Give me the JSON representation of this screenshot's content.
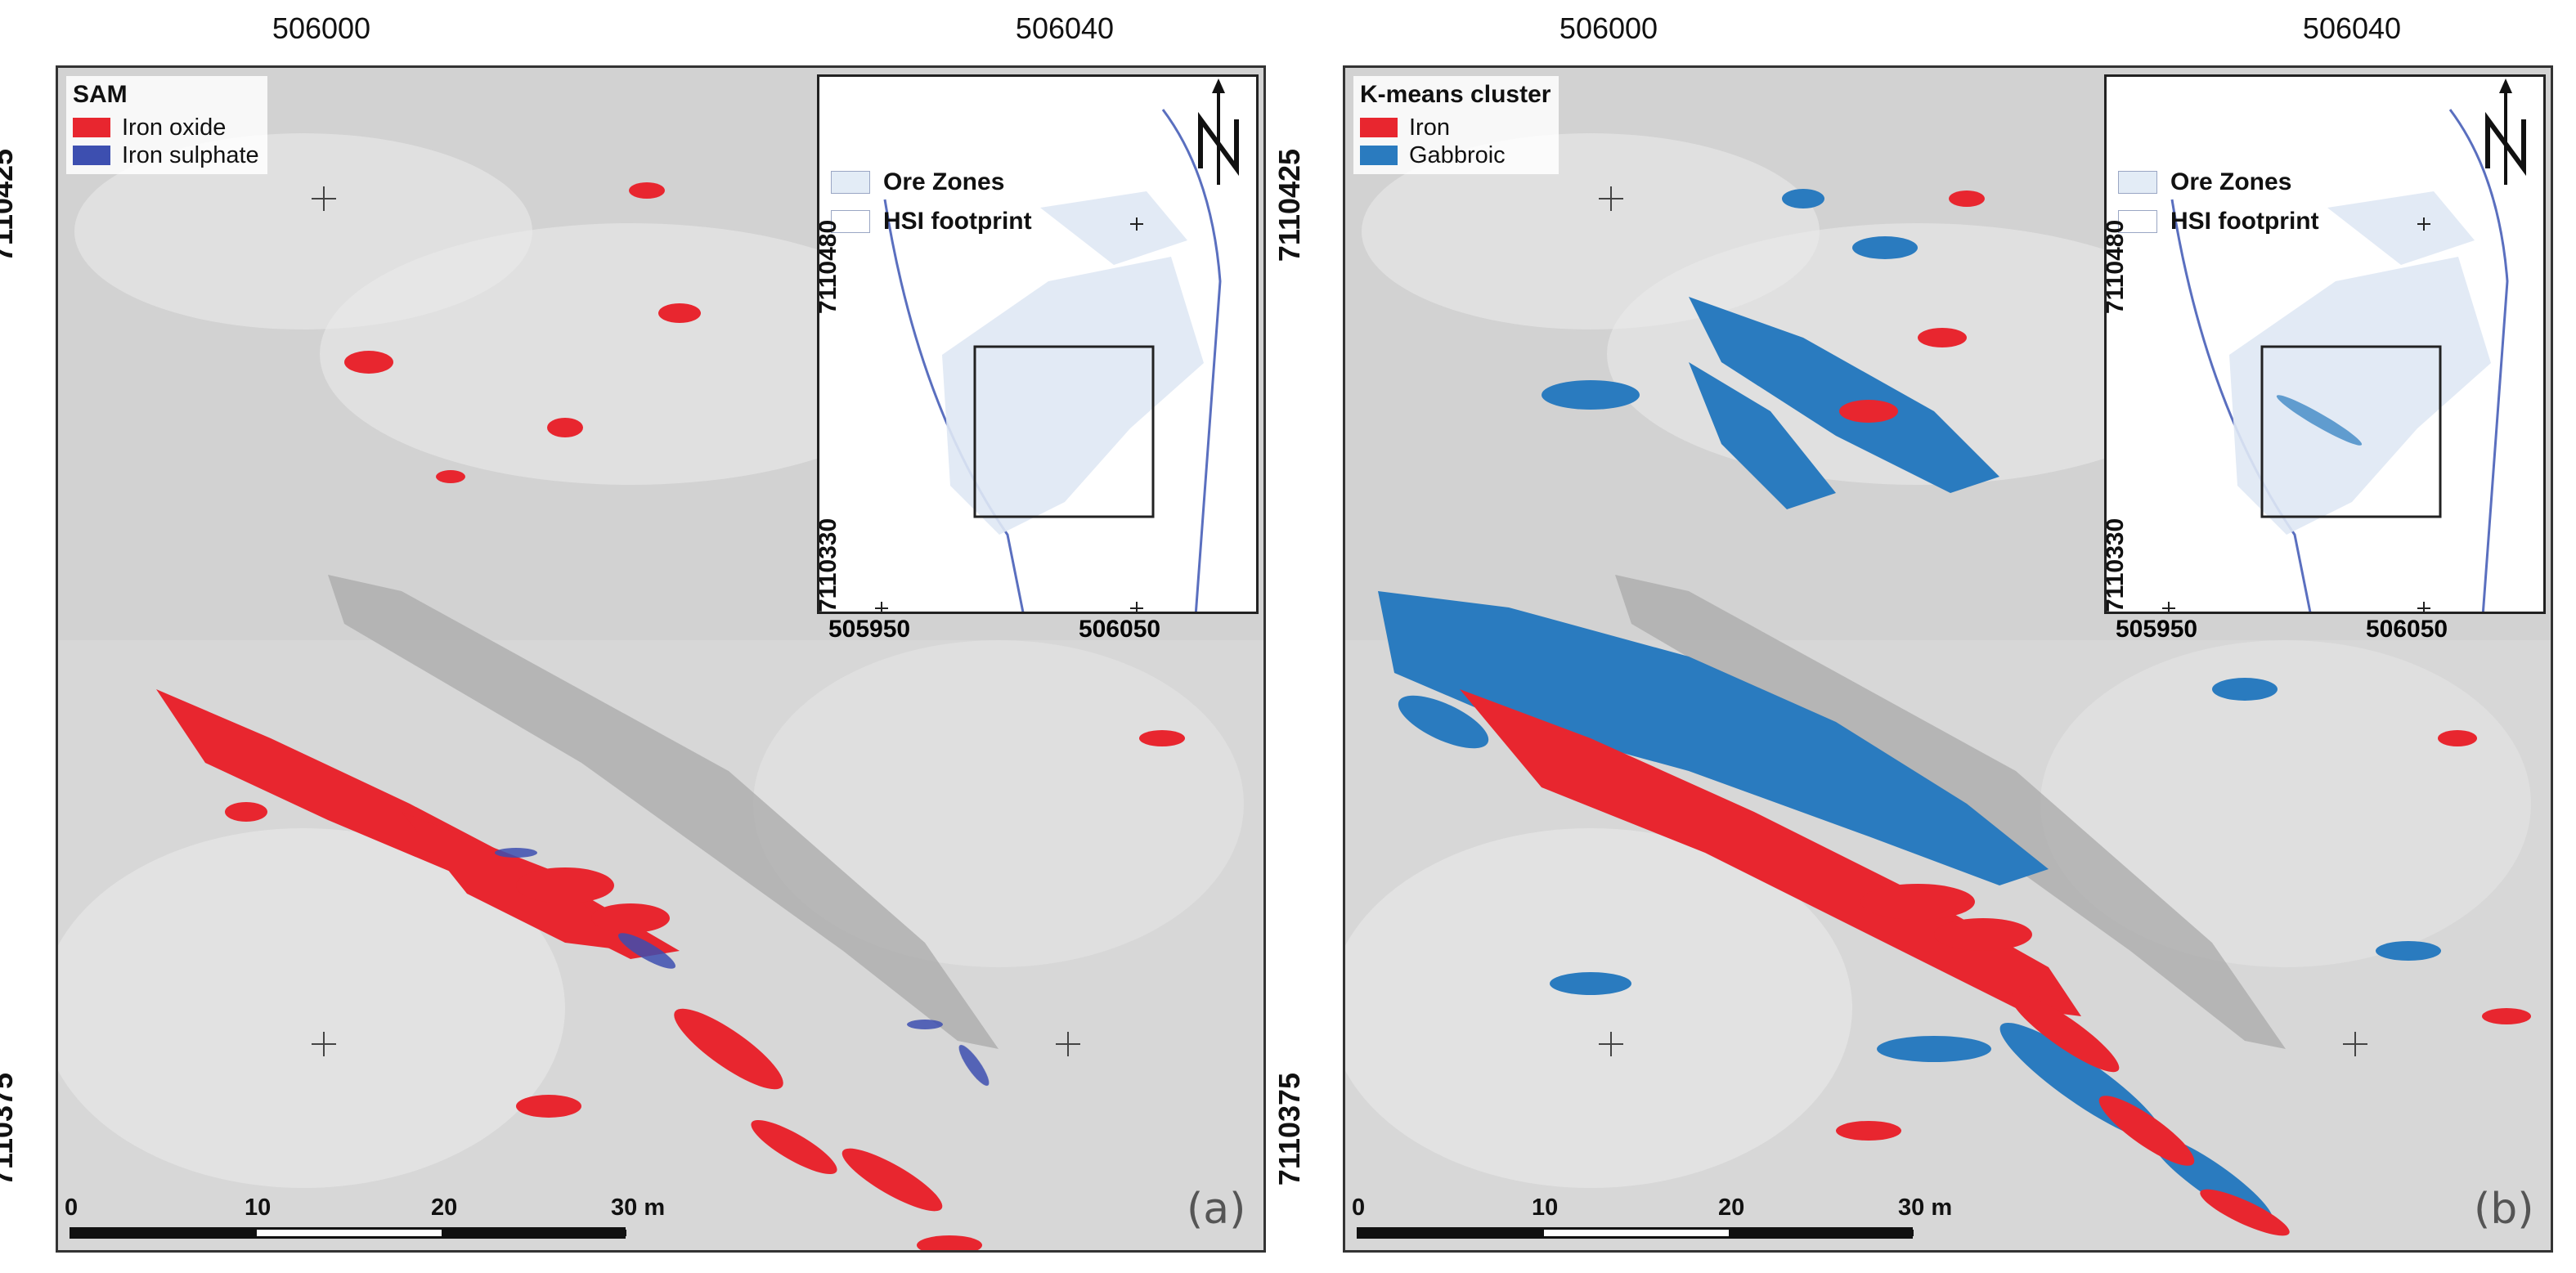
{
  "panels": [
    {
      "id": "a",
      "panel_label": "(a)",
      "legend": {
        "title": "SAM",
        "items": [
          {
            "label": "Iron oxide",
            "color": "#e8262f"
          },
          {
            "label": "Iron sulphate",
            "color": "#3d4fb0"
          }
        ]
      },
      "easting_ticks": [
        "506000",
        "506040"
      ],
      "northing_ticks": [
        "7110425",
        "7110375"
      ],
      "inset": {
        "legend": [
          {
            "label": "Ore Zones",
            "color": "#e3ecf6"
          },
          {
            "label": "HSI footprint",
            "color": "#ffffff"
          }
        ],
        "northing_ticks": [
          "7110480",
          "7110330"
        ],
        "easting_ticks": [
          "505950",
          "506050"
        ]
      },
      "scale_bar": {
        "labels": [
          "0",
          "10",
          "20",
          "30 m"
        ]
      }
    },
    {
      "id": "b",
      "panel_label": "(b)",
      "legend": {
        "title": "K-means cluster",
        "items": [
          {
            "label": "Iron",
            "color": "#e8262f"
          },
          {
            "label": "Gabbroic",
            "color": "#2a7bbf"
          }
        ]
      },
      "easting_ticks": [
        "506000",
        "506040"
      ],
      "northing_ticks": [
        "7110425",
        "7110375"
      ],
      "inset": {
        "legend": [
          {
            "label": "Ore Zones",
            "color": "#e3ecf6"
          },
          {
            "label": "HSI footprint",
            "color": "#ffffff"
          }
        ],
        "northing_ticks": [
          "7110480",
          "7110330"
        ],
        "easting_ticks": [
          "505950",
          "506050"
        ]
      },
      "scale_bar": {
        "labels": [
          "0",
          "10",
          "20",
          "30 m"
        ]
      }
    }
  ]
}
